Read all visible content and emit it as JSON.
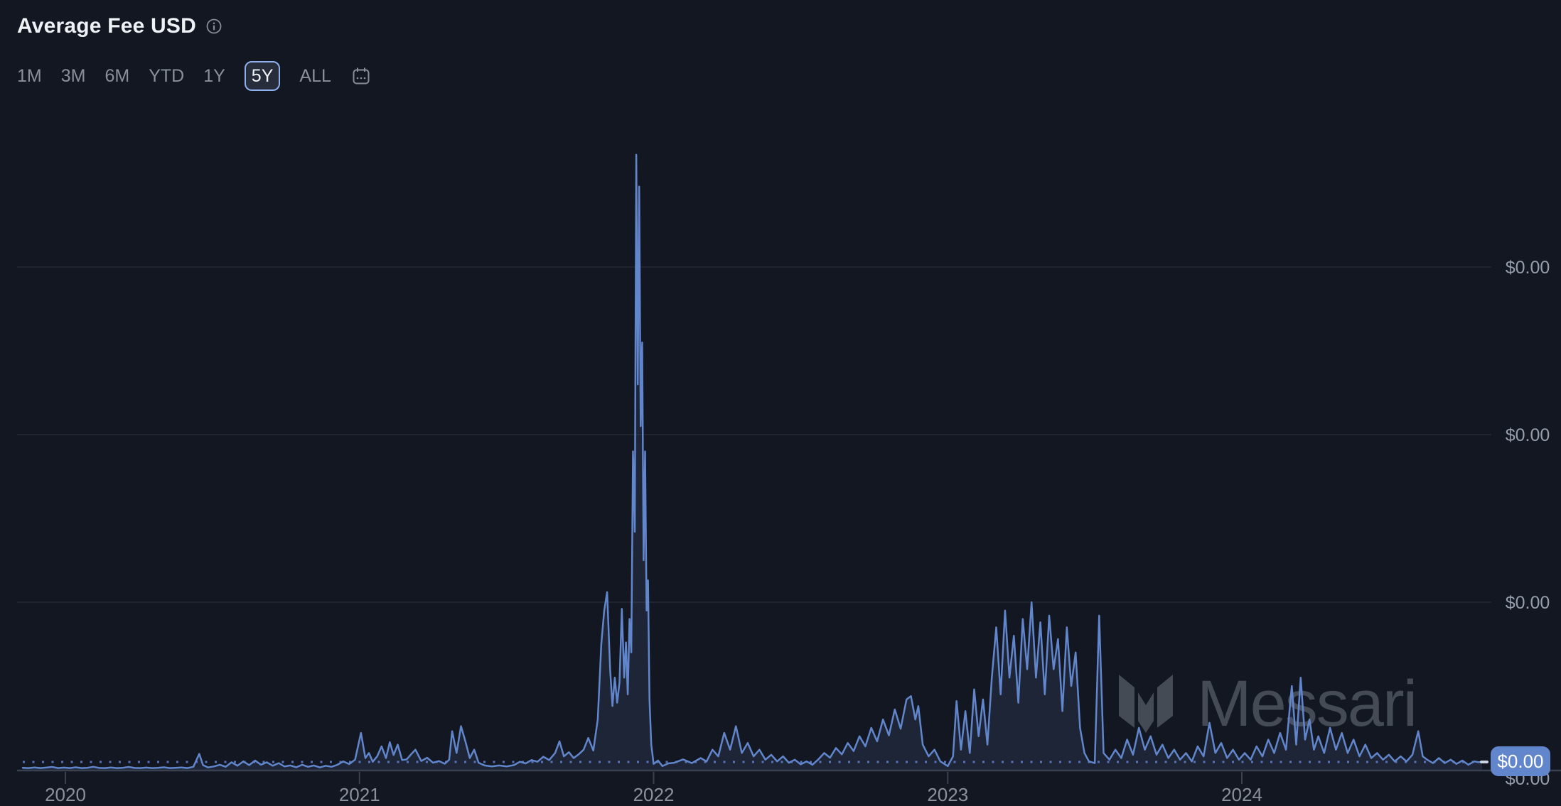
{
  "header": {
    "title": "Average Fee USD",
    "info_icon": "info-icon"
  },
  "range_selector": {
    "options": [
      "1M",
      "3M",
      "6M",
      "YTD",
      "1Y",
      "5Y",
      "ALL"
    ],
    "selected": "5Y",
    "calendar_icon": "calendar-icon"
  },
  "watermark": {
    "text": "Messari"
  },
  "current_value": {
    "label": "$0.00"
  },
  "colors": {
    "background": "#131722",
    "line": "#6286cb",
    "area_fill": "rgba(98,134,203,0.13)",
    "dotted_current_line": "#5572b8",
    "grid": "#242935",
    "axis": "#39404e",
    "badge": "#6286cb",
    "tick_text": "#979eac",
    "selected_border": "#8fb0ea"
  },
  "chart_data": {
    "type": "area",
    "title": "Average Fee USD",
    "xlabel": "",
    "ylabel": "",
    "grid": true,
    "legend": false,
    "x_tick_years": [
      2020,
      2021,
      2022,
      2023,
      2024
    ],
    "x_tick_labels": [
      "2020",
      "2021",
      "2022",
      "2023",
      "2024"
    ],
    "y_tick_labels": [
      "$0.00",
      "$0.00",
      "$0.00"
    ],
    "baseline_label": "$0.00",
    "current_value_label": "$0.00",
    "y_unit_note": "USD; values so small every axis tick renders as $0.00. Series values below are in gridline units (1.0 = one horizontal gridline above zero), peak ~3.67 units in late 2021.",
    "x_range": [
      2019.85,
      2024.82
    ],
    "ylim_units": [
      0,
      3.9
    ],
    "series": [
      {
        "name": "Average Fee USD",
        "points": [
          [
            2019.855,
            0.012
          ],
          [
            2019.875,
            0.01
          ],
          [
            2019.895,
            0.014
          ],
          [
            2019.915,
            0.01
          ],
          [
            2019.935,
            0.013
          ],
          [
            2019.955,
            0.017
          ],
          [
            2019.975,
            0.01
          ],
          [
            2019.995,
            0.013
          ],
          [
            2020.015,
            0.01
          ],
          [
            2020.035,
            0.015
          ],
          [
            2020.055,
            0.01
          ],
          [
            2020.075,
            0.012
          ],
          [
            2020.095,
            0.018
          ],
          [
            2020.115,
            0.011
          ],
          [
            2020.135,
            0.01
          ],
          [
            2020.155,
            0.014
          ],
          [
            2020.175,
            0.01
          ],
          [
            2020.195,
            0.012
          ],
          [
            2020.215,
            0.017
          ],
          [
            2020.235,
            0.011
          ],
          [
            2020.255,
            0.01
          ],
          [
            2020.275,
            0.013
          ],
          [
            2020.295,
            0.01
          ],
          [
            2020.315,
            0.012
          ],
          [
            2020.335,
            0.015
          ],
          [
            2020.355,
            0.01
          ],
          [
            2020.375,
            0.012
          ],
          [
            2020.395,
            0.014
          ],
          [
            2020.415,
            0.01
          ],
          [
            2020.435,
            0.018
          ],
          [
            2020.455,
            0.095
          ],
          [
            2020.468,
            0.028
          ],
          [
            2020.485,
            0.014
          ],
          [
            2020.505,
            0.02
          ],
          [
            2020.525,
            0.03
          ],
          [
            2020.545,
            0.018
          ],
          [
            2020.565,
            0.045
          ],
          [
            2020.585,
            0.024
          ],
          [
            2020.605,
            0.05
          ],
          [
            2020.625,
            0.028
          ],
          [
            2020.645,
            0.055
          ],
          [
            2020.665,
            0.03
          ],
          [
            2020.685,
            0.045
          ],
          [
            2020.705,
            0.024
          ],
          [
            2020.725,
            0.04
          ],
          [
            2020.745,
            0.02
          ],
          [
            2020.765,
            0.026
          ],
          [
            2020.785,
            0.015
          ],
          [
            2020.805,
            0.03
          ],
          [
            2020.825,
            0.018
          ],
          [
            2020.845,
            0.026
          ],
          [
            2020.865,
            0.014
          ],
          [
            2020.885,
            0.024
          ],
          [
            2020.905,
            0.018
          ],
          [
            2020.925,
            0.03
          ],
          [
            2020.945,
            0.05
          ],
          [
            2020.965,
            0.034
          ],
          [
            2020.985,
            0.06
          ],
          [
            2021.005,
            0.22
          ],
          [
            2021.02,
            0.07
          ],
          [
            2021.032,
            0.1
          ],
          [
            2021.045,
            0.048
          ],
          [
            2021.06,
            0.08
          ],
          [
            2021.075,
            0.14
          ],
          [
            2021.09,
            0.07
          ],
          [
            2021.103,
            0.165
          ],
          [
            2021.116,
            0.088
          ],
          [
            2021.13,
            0.15
          ],
          [
            2021.145,
            0.058
          ],
          [
            2021.16,
            0.062
          ],
          [
            2021.175,
            0.092
          ],
          [
            2021.19,
            0.12
          ],
          [
            2021.21,
            0.052
          ],
          [
            2021.23,
            0.072
          ],
          [
            2021.25,
            0.042
          ],
          [
            2021.27,
            0.052
          ],
          [
            2021.29,
            0.036
          ],
          [
            2021.305,
            0.06
          ],
          [
            2021.315,
            0.23
          ],
          [
            2021.33,
            0.1
          ],
          [
            2021.345,
            0.26
          ],
          [
            2021.36,
            0.17
          ],
          [
            2021.375,
            0.07
          ],
          [
            2021.39,
            0.12
          ],
          [
            2021.405,
            0.042
          ],
          [
            2021.425,
            0.026
          ],
          [
            2021.45,
            0.02
          ],
          [
            2021.475,
            0.026
          ],
          [
            2021.5,
            0.02
          ],
          [
            2021.525,
            0.028
          ],
          [
            2021.545,
            0.048
          ],
          [
            2021.565,
            0.038
          ],
          [
            2021.585,
            0.058
          ],
          [
            2021.605,
            0.048
          ],
          [
            2021.625,
            0.078
          ],
          [
            2021.645,
            0.058
          ],
          [
            2021.665,
            0.1
          ],
          [
            2021.68,
            0.17
          ],
          [
            2021.695,
            0.08
          ],
          [
            2021.712,
            0.105
          ],
          [
            2021.728,
            0.07
          ],
          [
            2021.745,
            0.092
          ],
          [
            2021.762,
            0.12
          ],
          [
            2021.778,
            0.19
          ],
          [
            2021.795,
            0.115
          ],
          [
            2021.81,
            0.3
          ],
          [
            2021.822,
            0.75
          ],
          [
            2021.832,
            0.95
          ],
          [
            2021.842,
            1.06
          ],
          [
            2021.852,
            0.6
          ],
          [
            2021.86,
            0.38
          ],
          [
            2021.868,
            0.55
          ],
          [
            2021.876,
            0.4
          ],
          [
            2021.884,
            0.52
          ],
          [
            2021.892,
            0.96
          ],
          [
            2021.9,
            0.55
          ],
          [
            2021.906,
            0.76
          ],
          [
            2021.912,
            0.45
          ],
          [
            2021.918,
            0.9
          ],
          [
            2021.924,
            0.7
          ],
          [
            2021.93,
            1.9
          ],
          [
            2021.936,
            1.42
          ],
          [
            2021.941,
            3.67
          ],
          [
            2021.946,
            2.3
          ],
          [
            2021.951,
            3.48
          ],
          [
            2021.956,
            2.05
          ],
          [
            2021.961,
            2.55
          ],
          [
            2021.966,
            1.25
          ],
          [
            2021.971,
            1.9
          ],
          [
            2021.976,
            0.95
          ],
          [
            2021.981,
            1.13
          ],
          [
            2021.986,
            0.42
          ],
          [
            2021.992,
            0.15
          ],
          [
            2022.0,
            0.035
          ],
          [
            2022.015,
            0.055
          ],
          [
            2022.03,
            0.022
          ],
          [
            2022.05,
            0.038
          ],
          [
            2022.07,
            0.042
          ],
          [
            2022.1,
            0.062
          ],
          [
            2022.13,
            0.04
          ],
          [
            2022.16,
            0.07
          ],
          [
            2022.18,
            0.05
          ],
          [
            2022.2,
            0.12
          ],
          [
            2022.22,
            0.08
          ],
          [
            2022.24,
            0.22
          ],
          [
            2022.26,
            0.12
          ],
          [
            2022.28,
            0.26
          ],
          [
            2022.3,
            0.1
          ],
          [
            2022.32,
            0.16
          ],
          [
            2022.34,
            0.08
          ],
          [
            2022.36,
            0.12
          ],
          [
            2022.38,
            0.06
          ],
          [
            2022.4,
            0.09
          ],
          [
            2022.42,
            0.05
          ],
          [
            2022.44,
            0.08
          ],
          [
            2022.46,
            0.042
          ],
          [
            2022.48,
            0.06
          ],
          [
            2022.5,
            0.032
          ],
          [
            2022.52,
            0.05
          ],
          [
            2022.54,
            0.03
          ],
          [
            2022.56,
            0.062
          ],
          [
            2022.58,
            0.1
          ],
          [
            2022.6,
            0.072
          ],
          [
            2022.62,
            0.13
          ],
          [
            2022.64,
            0.092
          ],
          [
            2022.66,
            0.16
          ],
          [
            2022.68,
            0.112
          ],
          [
            2022.7,
            0.2
          ],
          [
            2022.72,
            0.14
          ],
          [
            2022.74,
            0.25
          ],
          [
            2022.76,
            0.17
          ],
          [
            2022.78,
            0.3
          ],
          [
            2022.8,
            0.205
          ],
          [
            2022.82,
            0.36
          ],
          [
            2022.84,
            0.245
          ],
          [
            2022.86,
            0.42
          ],
          [
            2022.875,
            0.44
          ],
          [
            2022.89,
            0.3
          ],
          [
            2022.9,
            0.38
          ],
          [
            2022.915,
            0.15
          ],
          [
            2022.935,
            0.08
          ],
          [
            2022.955,
            0.12
          ],
          [
            2022.975,
            0.05
          ],
          [
            2023.0,
            0.022
          ],
          [
            2023.018,
            0.08
          ],
          [
            2023.03,
            0.41
          ],
          [
            2023.045,
            0.12
          ],
          [
            2023.06,
            0.35
          ],
          [
            2023.075,
            0.1
          ],
          [
            2023.09,
            0.48
          ],
          [
            2023.105,
            0.2
          ],
          [
            2023.12,
            0.42
          ],
          [
            2023.135,
            0.15
          ],
          [
            2023.15,
            0.55
          ],
          [
            2023.165,
            0.85
          ],
          [
            2023.18,
            0.45
          ],
          [
            2023.195,
            0.95
          ],
          [
            2023.21,
            0.55
          ],
          [
            2023.225,
            0.8
          ],
          [
            2023.24,
            0.4
          ],
          [
            2023.255,
            0.9
          ],
          [
            2023.27,
            0.6
          ],
          [
            2023.285,
            1.0
          ],
          [
            2023.3,
            0.55
          ],
          [
            2023.315,
            0.88
          ],
          [
            2023.33,
            0.45
          ],
          [
            2023.345,
            0.92
          ],
          [
            2023.36,
            0.6
          ],
          [
            2023.375,
            0.78
          ],
          [
            2023.39,
            0.35
          ],
          [
            2023.405,
            0.85
          ],
          [
            2023.42,
            0.5
          ],
          [
            2023.435,
            0.7
          ],
          [
            2023.45,
            0.25
          ],
          [
            2023.465,
            0.1
          ],
          [
            2023.48,
            0.05
          ],
          [
            2023.5,
            0.04
          ],
          [
            2023.515,
            0.92
          ],
          [
            2023.53,
            0.1
          ],
          [
            2023.55,
            0.06
          ],
          [
            2023.57,
            0.12
          ],
          [
            2023.59,
            0.07
          ],
          [
            2023.61,
            0.18
          ],
          [
            2023.63,
            0.09
          ],
          [
            2023.65,
            0.25
          ],
          [
            2023.67,
            0.12
          ],
          [
            2023.69,
            0.2
          ],
          [
            2023.71,
            0.09
          ],
          [
            2023.73,
            0.15
          ],
          [
            2023.75,
            0.07
          ],
          [
            2023.77,
            0.12
          ],
          [
            2023.79,
            0.06
          ],
          [
            2023.81,
            0.1
          ],
          [
            2023.83,
            0.05
          ],
          [
            2023.85,
            0.14
          ],
          [
            2023.87,
            0.08
          ],
          [
            2023.89,
            0.28
          ],
          [
            2023.91,
            0.1
          ],
          [
            2023.93,
            0.16
          ],
          [
            2023.95,
            0.07
          ],
          [
            2023.97,
            0.12
          ],
          [
            2023.99,
            0.06
          ],
          [
            2024.01,
            0.1
          ],
          [
            2024.03,
            0.06
          ],
          [
            2024.05,
            0.14
          ],
          [
            2024.07,
            0.08
          ],
          [
            2024.09,
            0.18
          ],
          [
            2024.11,
            0.1
          ],
          [
            2024.13,
            0.22
          ],
          [
            2024.15,
            0.12
          ],
          [
            2024.17,
            0.5
          ],
          [
            2024.185,
            0.15
          ],
          [
            2024.2,
            0.55
          ],
          [
            2024.215,
            0.18
          ],
          [
            2024.23,
            0.3
          ],
          [
            2024.245,
            0.12
          ],
          [
            2024.26,
            0.2
          ],
          [
            2024.28,
            0.1
          ],
          [
            2024.3,
            0.25
          ],
          [
            2024.32,
            0.12
          ],
          [
            2024.34,
            0.22
          ],
          [
            2024.36,
            0.1
          ],
          [
            2024.38,
            0.18
          ],
          [
            2024.4,
            0.08
          ],
          [
            2024.42,
            0.15
          ],
          [
            2024.44,
            0.07
          ],
          [
            2024.46,
            0.1
          ],
          [
            2024.48,
            0.06
          ],
          [
            2024.5,
            0.09
          ],
          [
            2024.52,
            0.05
          ],
          [
            2024.54,
            0.08
          ],
          [
            2024.56,
            0.05
          ],
          [
            2024.58,
            0.09
          ],
          [
            2024.6,
            0.23
          ],
          [
            2024.615,
            0.08
          ],
          [
            2024.63,
            0.06
          ],
          [
            2024.65,
            0.04
          ],
          [
            2024.67,
            0.07
          ],
          [
            2024.69,
            0.04
          ],
          [
            2024.71,
            0.06
          ],
          [
            2024.73,
            0.035
          ],
          [
            2024.75,
            0.055
          ],
          [
            2024.77,
            0.03
          ],
          [
            2024.79,
            0.05
          ],
          [
            2024.805,
            0.045
          ],
          [
            2024.817,
            0.047
          ]
        ]
      }
    ]
  }
}
